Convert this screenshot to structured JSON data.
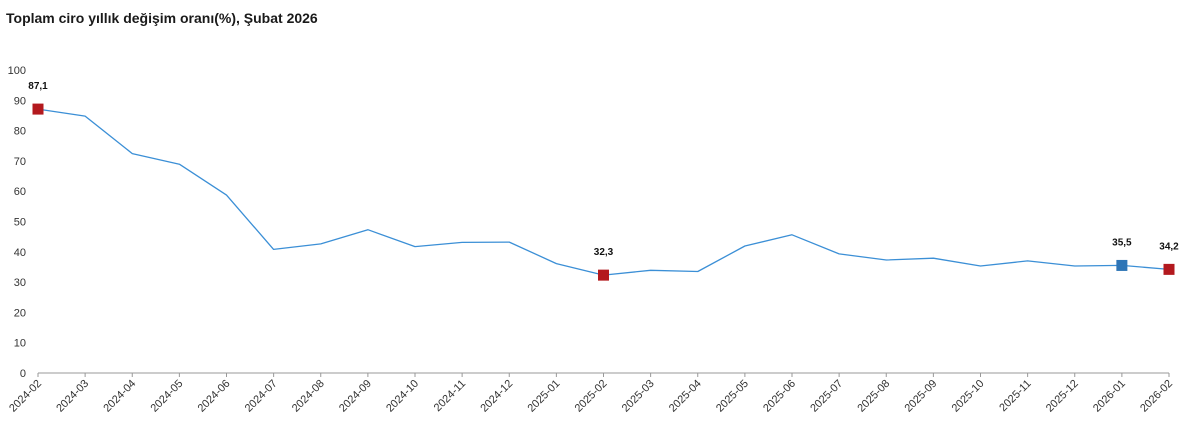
{
  "chart_data": {
    "type": "line",
    "title": "Toplam ciro yıllık değişim oranı(%), Şubat 2026",
    "xlabel": "",
    "ylabel": "",
    "ylim": [
      0,
      100
    ],
    "yticks": [
      "0",
      "10",
      "20",
      "30",
      "40",
      "50",
      "60",
      "70",
      "80",
      "90",
      "100"
    ],
    "categories": [
      "2024-02",
      "2024-03",
      "2024-04",
      "2024-05",
      "2024-06",
      "2024-07",
      "2024-08",
      "2024-09",
      "2024-10",
      "2024-11",
      "2024-12",
      "2025-01",
      "2025-02",
      "2025-03",
      "2025-04",
      "2025-05",
      "2025-06",
      "2025-07",
      "2025-08",
      "2025-09",
      "2025-10",
      "2025-11",
      "2025-12",
      "2026-01",
      "2026-02"
    ],
    "series": [
      {
        "values": [
          87.1,
          84.8,
          72.4,
          68.9,
          58.7,
          40.8,
          42.6,
          47.3,
          41.7,
          43.1,
          43.2,
          36.1,
          32.3,
          33.9,
          33.5,
          41.9,
          45.6,
          39.3,
          37.3,
          37.9,
          35.3,
          37.0,
          35.3,
          35.5,
          34.2
        ]
      }
    ],
    "grid": false,
    "legend": "none",
    "highlights": [
      {
        "category": "2024-02",
        "value": 87.1,
        "label": "87,1",
        "color": "#b3191e"
      },
      {
        "category": "2025-02",
        "value": 32.3,
        "label": "32,3",
        "color": "#b3191e"
      },
      {
        "category": "2026-01",
        "value": 35.5,
        "label": "35,5",
        "color": "#2e75b6"
      },
      {
        "category": "2026-02",
        "value": 34.2,
        "label": "34,2",
        "color": "#b3191e"
      }
    ],
    "line_color": "#3b8fd6",
    "axis_color": "#999999"
  }
}
